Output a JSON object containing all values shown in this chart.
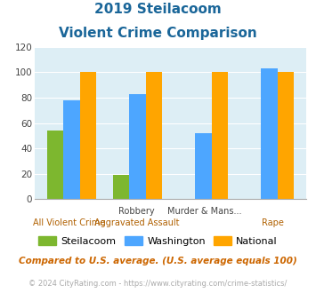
{
  "title_line1": "2019 Steilacoom",
  "title_line2": "Violent Crime Comparison",
  "steilacoom": [
    54,
    19,
    0,
    0
  ],
  "washington": [
    78,
    83,
    52,
    103
  ],
  "national": [
    100,
    100,
    100,
    100
  ],
  "steilacoom_color": "#7db72f",
  "washington_color": "#4da6ff",
  "national_color": "#ffa500",
  "ylim": [
    0,
    120
  ],
  "yticks": [
    0,
    20,
    40,
    60,
    80,
    100,
    120
  ],
  "background_color": "#ddeef5",
  "title_color": "#1a6699",
  "top_labels": [
    "",
    "Robbery",
    "Murder & Mans...",
    ""
  ],
  "bottom_labels": [
    "All Violent Crime",
    "Aggravated Assault",
    "",
    "Rape"
  ],
  "footer_text": "Compared to U.S. average. (U.S. average equals 100)",
  "copyright_text": "© 2024 CityRating.com - https://www.cityrating.com/crime-statistics/",
  "legend_labels": [
    "Steilacoom",
    "Washington",
    "National"
  ]
}
